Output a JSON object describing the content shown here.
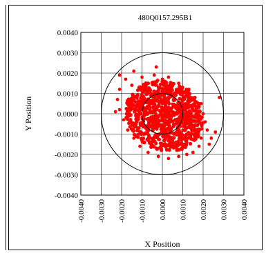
{
  "chart_data": {
    "type": "scatter",
    "title": "480Q0157.295B1",
    "xlabel": "X Position",
    "ylabel": "Y Position",
    "xlim": [
      -0.004,
      0.004
    ],
    "ylim": [
      -0.004,
      0.004
    ],
    "x_ticks": [
      "-0.0040",
      "-0.0030",
      "-0.0020",
      "-0.0010",
      "0.0000",
      "0.0010",
      "0.0020",
      "0.0030",
      "0.0040"
    ],
    "y_ticks": [
      "0.0040",
      "0.0030",
      "0.0020",
      "0.0010",
      "0.0000",
      "-0.0010",
      "-0.0020",
      "-0.0030",
      "-0.0040"
    ],
    "grid": true,
    "reference_circles": [
      {
        "center": [
          0,
          0
        ],
        "radius": 0.003
      },
      {
        "center": [
          0,
          0
        ],
        "radius": 0.001
      }
    ],
    "series": [
      {
        "color": "#ff0000",
        "points": [
          [
            -0.0021,
            0.0019
          ],
          [
            -0.0018,
            0.0017
          ],
          [
            -0.0014,
            0.0021
          ],
          [
            -0.001,
            0.0018
          ],
          [
            -0.0004,
            0.0019
          ],
          [
            0.0,
            0.0017
          ],
          [
            -0.0003,
            0.0023
          ],
          [
            0.0003,
            0.0018
          ],
          [
            0.0008,
            0.0015
          ],
          [
            0.0013,
            0.0012
          ],
          [
            0.0016,
            0.0008
          ],
          [
            0.0019,
            0.0005
          ],
          [
            0.002,
            0.0
          ],
          [
            0.0021,
            -0.0004
          ],
          [
            0.0022,
            -0.0008
          ],
          [
            0.0019,
            -0.0012
          ],
          [
            0.0018,
            -0.0016
          ],
          [
            0.0015,
            -0.0019
          ],
          [
            0.0012,
            -0.002
          ],
          [
            0.0008,
            -0.0021
          ],
          [
            0.0003,
            -0.0022
          ],
          [
            -0.0002,
            -0.0021
          ],
          [
            -0.0007,
            -0.0019
          ],
          [
            -0.0011,
            -0.0016
          ],
          [
            -0.0014,
            -0.0012
          ],
          [
            -0.0017,
            -0.0008
          ],
          [
            -0.0019,
            -0.0003
          ],
          [
            -0.0021,
            0.0002
          ],
          [
            -0.0022,
            0.0007
          ],
          [
            -0.0021,
            0.0012
          ],
          [
            0.0024,
            -0.0012
          ],
          [
            0.0023,
            -0.0015
          ],
          [
            0.0026,
            -0.0009
          ],
          [
            -0.0023,
            0.0001
          ],
          [
            0.0028,
            0.0008
          ],
          [
            -0.0006,
            0.0011
          ],
          [
            0.0005,
            -0.0013
          ],
          [
            -0.0009,
            -0.0006
          ],
          [
            0.001,
            0.0003
          ],
          [
            -0.0012,
            0.0009
          ],
          [
            0.0007,
            0.0012
          ],
          [
            0.0014,
            -0.001
          ],
          [
            -0.0015,
            0.0014
          ],
          [
            -0.0016,
            0.0004
          ],
          [
            0.0017,
            -0.0002
          ]
        ]
      }
    ]
  }
}
